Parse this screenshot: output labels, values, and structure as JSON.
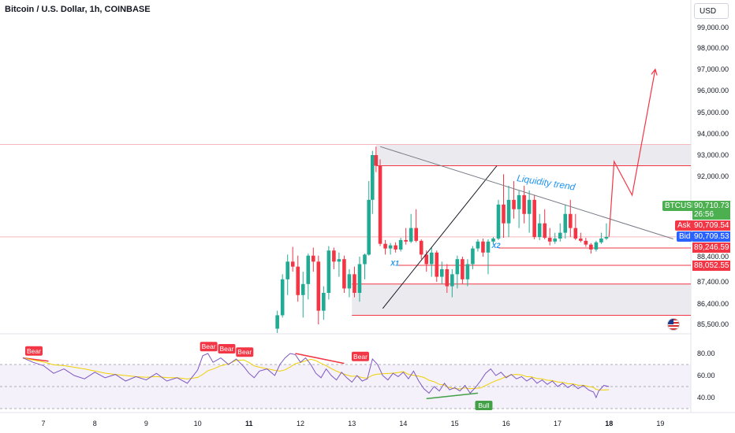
{
  "header": {
    "title": "Bitcoin / U.S. Dollar, 1h, COINBASE",
    "currency_button": "USD"
  },
  "colors": {
    "up": "#22ab94",
    "down": "#f23645",
    "zone_line": "#f23645",
    "zone_fill": "#ebebef",
    "trend_line": "#787b86",
    "rsi": "#7e57c2",
    "rsi_ma": "#f0d000",
    "annot": "#2196f3"
  },
  "chart_data": [
    {
      "type": "candlestick",
      "title": "Bitcoin / U.S. Dollar, 1h, COINBASE",
      "x_ticks": [
        "7",
        "8",
        "9",
        "10",
        "11",
        "12",
        "13",
        "14",
        "15",
        "16",
        "17",
        "18",
        "19"
      ],
      "y_ticks": [
        "99,000.00",
        "98,000.00",
        "97,000.00",
        "96,000.00",
        "95,000.00",
        "94,000.00",
        "93,000.00",
        "92,000.00",
        "88,400.00",
        "87,400.00",
        "86,400.00",
        "85,500.00"
      ],
      "ylim": [
        85300,
        99400
      ],
      "candles": [
        {
          "day": 11.55,
          "o": 85400,
          "h": 86100,
          "l": 85300,
          "c": 85900
        },
        {
          "day": 11.65,
          "o": 85900,
          "h": 87700,
          "l": 85800,
          "c": 87500
        },
        {
          "day": 11.75,
          "o": 87500,
          "h": 88600,
          "l": 86800,
          "c": 88200
        },
        {
          "day": 11.85,
          "o": 88200,
          "h": 89400,
          "l": 87800,
          "c": 88000
        },
        {
          "day": 11.95,
          "o": 88000,
          "h": 88500,
          "l": 86500,
          "c": 86800
        },
        {
          "day": 12.05,
          "o": 86800,
          "h": 87800,
          "l": 85800,
          "c": 87300
        },
        {
          "day": 12.15,
          "o": 87300,
          "h": 88700,
          "l": 86600,
          "c": 88500
        },
        {
          "day": 12.25,
          "o": 88500,
          "h": 89300,
          "l": 87800,
          "c": 88200
        },
        {
          "day": 12.35,
          "o": 88200,
          "h": 88500,
          "l": 85500,
          "c": 86100
        },
        {
          "day": 12.45,
          "o": 86100,
          "h": 87200,
          "l": 85700,
          "c": 86900
        },
        {
          "day": 12.55,
          "o": 86900,
          "h": 89500,
          "l": 86600,
          "c": 89000
        },
        {
          "day": 12.65,
          "o": 89000,
          "h": 89300,
          "l": 87900,
          "c": 88200
        },
        {
          "day": 12.75,
          "o": 88200,
          "h": 88800,
          "l": 87600,
          "c": 88300
        },
        {
          "day": 12.85,
          "o": 88300,
          "h": 88500,
          "l": 86900,
          "c": 87100
        },
        {
          "day": 12.95,
          "o": 87100,
          "h": 87900,
          "l": 86700,
          "c": 87700
        },
        {
          "day": 13.05,
          "o": 87700,
          "h": 88000,
          "l": 86700,
          "c": 86900
        },
        {
          "day": 13.15,
          "o": 86900,
          "h": 88400,
          "l": 86500,
          "c": 88100
        },
        {
          "day": 13.25,
          "o": 88100,
          "h": 88700,
          "l": 87500,
          "c": 88600
        },
        {
          "day": 13.33,
          "o": 88600,
          "h": 91900,
          "l": 88500,
          "c": 91500
        },
        {
          "day": 13.4,
          "o": 91500,
          "h": 93200,
          "l": 91200,
          "c": 93000
        },
        {
          "day": 13.47,
          "o": 93000,
          "h": 93400,
          "l": 92200,
          "c": 92500
        },
        {
          "day": 13.55,
          "o": 92500,
          "h": 92800,
          "l": 89500,
          "c": 89800
        },
        {
          "day": 13.65,
          "o": 89800,
          "h": 90300,
          "l": 88600,
          "c": 89200
        },
        {
          "day": 13.75,
          "o": 89200,
          "h": 89900,
          "l": 88600,
          "c": 89600
        },
        {
          "day": 13.85,
          "o": 89600,
          "h": 90000,
          "l": 88800,
          "c": 89100
        },
        {
          "day": 13.95,
          "o": 89100,
          "h": 90600,
          "l": 88900,
          "c": 90300
        },
        {
          "day": 14.05,
          "o": 90300,
          "h": 90900,
          "l": 89700,
          "c": 90100
        },
        {
          "day": 14.15,
          "o": 90100,
          "h": 91200,
          "l": 89900,
          "c": 90900
        },
        {
          "day": 14.25,
          "o": 90900,
          "h": 91300,
          "l": 90000,
          "c": 90200
        },
        {
          "day": 14.35,
          "o": 90200,
          "h": 90400,
          "l": 88300,
          "c": 88600
        },
        {
          "day": 14.45,
          "o": 88600,
          "h": 89000,
          "l": 87800,
          "c": 88100
        },
        {
          "day": 14.55,
          "o": 88100,
          "h": 89300,
          "l": 87600,
          "c": 88800
        },
        {
          "day": 14.65,
          "o": 88800,
          "h": 89000,
          "l": 87400,
          "c": 87600
        },
        {
          "day": 14.75,
          "o": 87600,
          "h": 88200,
          "l": 87300,
          "c": 87900
        },
        {
          "day": 14.85,
          "o": 87900,
          "h": 88100,
          "l": 86900,
          "c": 87200
        },
        {
          "day": 14.95,
          "o": 87200,
          "h": 87900,
          "l": 86700,
          "c": 87700
        },
        {
          "day": 15.05,
          "o": 87700,
          "h": 88500,
          "l": 87100,
          "c": 88300
        },
        {
          "day": 15.15,
          "o": 88300,
          "h": 88400,
          "l": 87300,
          "c": 87500
        },
        {
          "day": 15.25,
          "o": 87500,
          "h": 88300,
          "l": 87200,
          "c": 88100
        },
        {
          "day": 15.35,
          "o": 88100,
          "h": 89500,
          "l": 87900,
          "c": 89200
        },
        {
          "day": 15.45,
          "o": 89200,
          "h": 90400,
          "l": 88900,
          "c": 90100
        },
        {
          "day": 15.55,
          "o": 90100,
          "h": 90500,
          "l": 88400,
          "c": 88800
        },
        {
          "day": 15.65,
          "o": 88800,
          "h": 90400,
          "l": 87700,
          "c": 90100
        },
        {
          "day": 15.75,
          "o": 90100,
          "h": 90700,
          "l": 89700,
          "c": 90500
        },
        {
          "day": 15.85,
          "o": 90500,
          "h": 91500,
          "l": 90300,
          "c": 91400
        },
        {
          "day": 15.95,
          "o": 91400,
          "h": 92100,
          "l": 90600,
          "c": 91000
        },
        {
          "day": 16.05,
          "o": 91000,
          "h": 91800,
          "l": 90700,
          "c": 91500
        },
        {
          "day": 16.15,
          "o": 91500,
          "h": 91900,
          "l": 91100,
          "c": 91300
        },
        {
          "day": 16.25,
          "o": 91300,
          "h": 91700,
          "l": 90900,
          "c": 91600
        },
        {
          "day": 16.35,
          "o": 91600,
          "h": 91800,
          "l": 91000,
          "c": 91200
        },
        {
          "day": 16.45,
          "o": 91200,
          "h": 91700,
          "l": 90800,
          "c": 91500
        },
        {
          "day": 16.55,
          "o": 91500,
          "h": 91600,
          "l": 90400,
          "c": 90700
        },
        {
          "day": 16.65,
          "o": 90700,
          "h": 91200,
          "l": 90300,
          "c": 91000
        },
        {
          "day": 16.75,
          "o": 91000,
          "h": 91300,
          "l": 90400,
          "c": 90600
        },
        {
          "day": 16.85,
          "o": 90600,
          "h": 90900,
          "l": 89600,
          "c": 90100
        },
        {
          "day": 16.95,
          "o": 90100,
          "h": 90800,
          "l": 89800,
          "c": 90500
        },
        {
          "day": 17.05,
          "o": 90500,
          "h": 91000,
          "l": 90100,
          "c": 90800
        },
        {
          "day": 17.15,
          "o": 90800,
          "h": 91400,
          "l": 90500,
          "c": 91200
        },
        {
          "day": 17.25,
          "o": 91200,
          "h": 91500,
          "l": 90700,
          "c": 90900
        },
        {
          "day": 17.35,
          "o": 90900,
          "h": 91200,
          "l": 90300,
          "c": 90500
        },
        {
          "day": 17.45,
          "o": 90500,
          "h": 90800,
          "l": 90000,
          "c": 90200
        },
        {
          "day": 17.55,
          "o": 90200,
          "h": 90600,
          "l": 89400,
          "c": 89700
        },
        {
          "day": 17.65,
          "o": 89700,
          "h": 89900,
          "l": 88700,
          "c": 89100
        },
        {
          "day": 17.75,
          "o": 89100,
          "h": 90200,
          "l": 88900,
          "c": 90000
        },
        {
          "day": 17.85,
          "o": 90000,
          "h": 90800,
          "l": 89800,
          "c": 90500
        },
        {
          "day": 17.95,
          "o": 90500,
          "h": 91000,
          "l": 90300,
          "c": 90710
        }
      ],
      "trend_lines": [
        {
          "from": [
            13.6,
            86200
          ],
          "to": [
            15.82,
            92500
          ]
        },
        {
          "from": [
            13.55,
            93400
          ],
          "to": [
            19.25,
            90450
          ]
        }
      ],
      "zones": [
        {
          "top": 93500,
          "bottom": 92500
        },
        {
          "top": 87300,
          "bottom": 85900
        }
      ],
      "levels": [
        {
          "price": 89246.59
        },
        {
          "price": 88052.55
        },
        {
          "price": 90710.73,
          "start": 0
        }
      ],
      "resistance_line": 93500,
      "projection": [
        [
          18.0,
          90710
        ],
        [
          18.1,
          92700
        ],
        [
          18.45,
          91600
        ],
        [
          18.9,
          97000
        ]
      ],
      "annotations": [
        {
          "text": "Liquidity trend",
          "day": 16.2,
          "price": 91900
        },
        {
          "text": "X1",
          "day": 13.75,
          "price": 88040
        },
        {
          "text": "X2",
          "day": 15.72,
          "price": 89250
        }
      ],
      "price_tags": {
        "symbol": "BTCUSD",
        "last": "90,710.73",
        "timer": "26:56",
        "ask_label": "Ask",
        "ask": "90,709.54",
        "bid_label": "Bid",
        "bid": "90,709.53",
        "level1": "89,246.59",
        "level2": "88,052.55"
      }
    },
    {
      "type": "line",
      "title": "",
      "y_ticks": [
        "80.00",
        "60.00",
        "40.00"
      ],
      "ylim": [
        30,
        90
      ],
      "bands": [
        70,
        50,
        30
      ],
      "signals": [
        {
          "text": "Bear",
          "day": 6.8,
          "value": 78
        },
        {
          "text": "Bear",
          "day": 10.2,
          "value": 82
        },
        {
          "text": "Bear",
          "day": 10.55,
          "value": 80
        },
        {
          "text": "Bear",
          "day": 10.9,
          "value": 77
        },
        {
          "text": "Bear",
          "day": 13.15,
          "value": 73
        },
        {
          "text": "Bull",
          "day": 15.55,
          "value": 40
        }
      ],
      "divergences": [
        {
          "from": [
            6.6,
            76
          ],
          "to": [
            7.1,
            73
          ],
          "kind": "bear"
        },
        {
          "from": [
            11.9,
            80
          ],
          "to": [
            12.85,
            71
          ],
          "kind": "bear"
        },
        {
          "from": [
            14.45,
            39
          ],
          "to": [
            15.45,
            44
          ],
          "kind": "bull"
        }
      ],
      "rsi": [
        [
          6.6,
          76
        ],
        [
          6.8,
          72
        ],
        [
          7.0,
          69
        ],
        [
          7.2,
          62
        ],
        [
          7.4,
          66
        ],
        [
          7.6,
          60
        ],
        [
          7.8,
          57
        ],
        [
          8.0,
          63
        ],
        [
          8.2,
          58
        ],
        [
          8.4,
          61
        ],
        [
          8.6,
          55
        ],
        [
          8.8,
          59
        ],
        [
          9.0,
          56
        ],
        [
          9.2,
          62
        ],
        [
          9.4,
          55
        ],
        [
          9.6,
          58
        ],
        [
          9.8,
          53
        ],
        [
          10.0,
          65
        ],
        [
          10.1,
          78
        ],
        [
          10.2,
          80
        ],
        [
          10.3,
          72
        ],
        [
          10.45,
          76
        ],
        [
          10.6,
          70
        ],
        [
          10.75,
          75
        ],
        [
          10.9,
          68
        ],
        [
          11.0,
          62
        ],
        [
          11.1,
          58
        ],
        [
          11.2,
          64
        ],
        [
          11.35,
          66
        ],
        [
          11.5,
          60
        ],
        [
          11.6,
          70
        ],
        [
          11.7,
          76
        ],
        [
          11.8,
          80
        ],
        [
          11.9,
          79
        ],
        [
          12.0,
          72
        ],
        [
          12.1,
          76
        ],
        [
          12.2,
          70
        ],
        [
          12.3,
          62
        ],
        [
          12.4,
          58
        ],
        [
          12.5,
          66
        ],
        [
          12.6,
          60
        ],
        [
          12.7,
          56
        ],
        [
          12.8,
          63
        ],
        [
          12.9,
          58
        ],
        [
          13.0,
          54
        ],
        [
          13.1,
          60
        ],
        [
          13.2,
          55
        ],
        [
          13.3,
          57
        ],
        [
          13.4,
          75
        ],
        [
          13.5,
          70
        ],
        [
          13.6,
          60
        ],
        [
          13.7,
          56
        ],
        [
          13.8,
          62
        ],
        [
          13.9,
          59
        ],
        [
          14.0,
          63
        ],
        [
          14.1,
          57
        ],
        [
          14.2,
          64
        ],
        [
          14.3,
          55
        ],
        [
          14.4,
          48
        ],
        [
          14.5,
          44
        ],
        [
          14.6,
          50
        ],
        [
          14.7,
          46
        ],
        [
          14.8,
          53
        ],
        [
          14.9,
          47
        ],
        [
          15.0,
          49
        ],
        [
          15.1,
          46
        ],
        [
          15.2,
          51
        ],
        [
          15.3,
          44
        ],
        [
          15.4,
          49
        ],
        [
          15.5,
          55
        ],
        [
          15.6,
          62
        ],
        [
          15.7,
          66
        ],
        [
          15.8,
          60
        ],
        [
          15.9,
          63
        ],
        [
          16.0,
          58
        ],
        [
          16.1,
          61
        ],
        [
          16.2,
          57
        ],
        [
          16.3,
          59
        ],
        [
          16.4,
          55
        ],
        [
          16.5,
          58
        ],
        [
          16.6,
          53
        ],
        [
          16.7,
          56
        ],
        [
          16.8,
          52
        ],
        [
          16.9,
          55
        ],
        [
          17.0,
          50
        ],
        [
          17.1,
          53
        ],
        [
          17.2,
          49
        ],
        [
          17.3,
          52
        ],
        [
          17.4,
          48
        ],
        [
          17.5,
          51
        ],
        [
          17.6,
          47
        ],
        [
          17.7,
          45
        ],
        [
          17.75,
          40
        ],
        [
          17.8,
          46
        ],
        [
          17.9,
          51
        ],
        [
          18.0,
          50
        ]
      ]
    }
  ]
}
